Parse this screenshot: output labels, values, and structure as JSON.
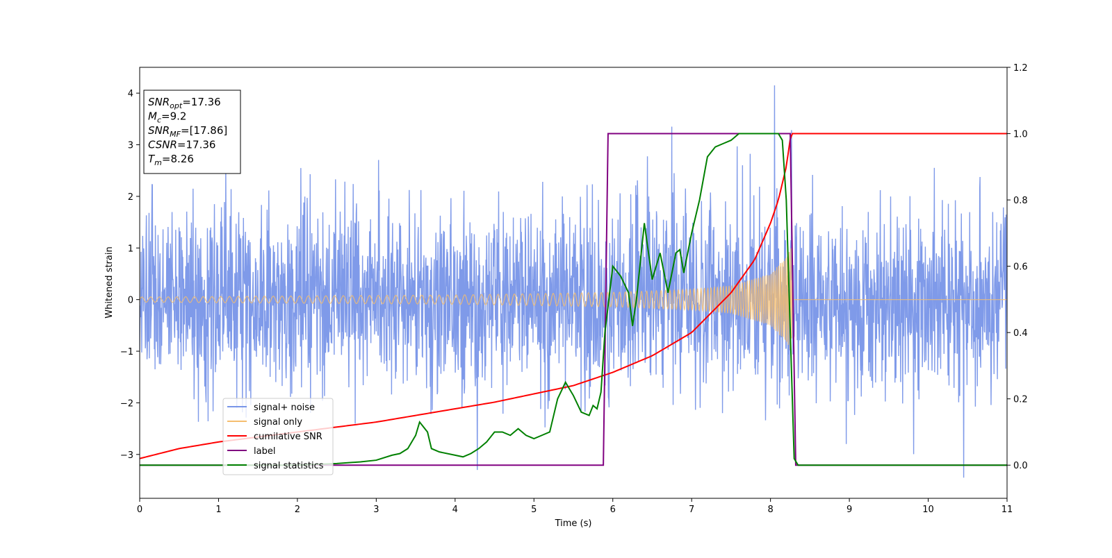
{
  "chart_data": {
    "type": "line",
    "title": "",
    "xlabel": "Time (s)",
    "ylabel": "Whitened strain",
    "y2label": "",
    "xlim": [
      0,
      11
    ],
    "ylim": [
      -3.85,
      4.5
    ],
    "y2lim": [
      -0.1,
      1.2
    ],
    "x_ticks": [
      "0",
      "1",
      "2",
      "3",
      "4",
      "5",
      "6",
      "7",
      "8",
      "9",
      "10",
      "11"
    ],
    "y_ticks": [
      {
        "v": 4,
        "label": "4"
      },
      {
        "v": 3,
        "label": "3"
      },
      {
        "v": 2,
        "label": "2"
      },
      {
        "v": 1,
        "label": "1"
      },
      {
        "v": 0,
        "label": "0"
      },
      {
        "v": -1,
        "label": "−1"
      },
      {
        "v": -2,
        "label": "−2"
      },
      {
        "v": -3,
        "label": "−3"
      }
    ],
    "y2_ticks": [
      "1.2",
      "1.0",
      "0.8",
      "0.6",
      "0.4",
      "0.2",
      "0.0"
    ],
    "annotations": [
      {
        "main": "SNR",
        "sub": "opt",
        "rest": "=17.36"
      },
      {
        "main": "M",
        "sub": "c",
        "rest": "=9.2"
      },
      {
        "main": "SNR",
        "sub": "MF",
        "rest": "=[17.86]"
      },
      {
        "main": "CSNR",
        "sub": "",
        "rest": "=17.36"
      },
      {
        "main": "T",
        "sub": "m",
        "rest": "=8.26"
      }
    ],
    "legend": {
      "placement": "lower-left",
      "entries": [
        {
          "name": "signal+ noise",
          "color": "#7895e8"
        },
        {
          "name": "signal only",
          "color": "#f5bd6e"
        },
        {
          "name": "cumilative SNR",
          "color": "#ff0000"
        },
        {
          "name": "label",
          "color": "#800080"
        },
        {
          "name": "signal statistics",
          "color": "#008000"
        }
      ]
    },
    "series": [
      {
        "name": "signal+ noise",
        "axis": "left",
        "color": "#7895e8",
        "description_values": {
          "noise_sigma": 0.9,
          "peak_outliers": [
            [
              8.05,
              4.15
            ],
            [
              6.75,
              3.35
            ],
            [
              10.45,
              -3.45
            ],
            [
              4.28,
              -3.3
            ]
          ]
        }
      },
      {
        "name": "signal only",
        "axis": "left",
        "color": "#f5bd6e",
        "envelope": {
          "x": [
            0,
            2,
            4,
            6,
            7,
            7.5,
            8,
            8.15,
            8.26,
            8.3,
            11
          ],
          "amp": [
            0.05,
            0.07,
            0.09,
            0.14,
            0.2,
            0.27,
            0.5,
            0.75,
            1.0,
            0.0,
            0.0
          ]
        }
      },
      {
        "name": "cumilative SNR",
        "axis": "right",
        "color": "#ff0000",
        "x": [
          0,
          0.5,
          1,
          1.5,
          2,
          2.5,
          3,
          3.5,
          4,
          4.5,
          5,
          5.5,
          6,
          6.5,
          7,
          7.5,
          7.8,
          8.0,
          8.1,
          8.2,
          8.26,
          8.3,
          11
        ],
        "values": [
          0.02,
          0.05,
          0.07,
          0.085,
          0.1,
          0.115,
          0.13,
          0.15,
          0.17,
          0.19,
          0.215,
          0.24,
          0.28,
          0.33,
          0.4,
          0.52,
          0.62,
          0.73,
          0.8,
          0.9,
          1.0,
          1.0,
          1.0
        ]
      },
      {
        "name": "label",
        "axis": "right",
        "color": "#800080",
        "x": [
          0,
          5.88,
          5.94,
          8.25,
          8.32,
          11
        ],
        "values": [
          0,
          0,
          1,
          1,
          0,
          0
        ]
      },
      {
        "name": "signal statistics",
        "axis": "right",
        "color": "#008000",
        "x": [
          0,
          1,
          2,
          2.5,
          2.8,
          3,
          3.2,
          3.3,
          3.4,
          3.5,
          3.55,
          3.65,
          3.7,
          3.8,
          4.0,
          4.1,
          4.2,
          4.3,
          4.4,
          4.5,
          4.6,
          4.7,
          4.8,
          4.9,
          5.0,
          5.1,
          5.2,
          5.3,
          5.4,
          5.5,
          5.6,
          5.7,
          5.75,
          5.8,
          5.85,
          5.9,
          6.0,
          6.1,
          6.2,
          6.25,
          6.3,
          6.4,
          6.5,
          6.6,
          6.7,
          6.8,
          6.85,
          6.9,
          7.0,
          7.1,
          7.2,
          7.3,
          7.4,
          7.5,
          7.6,
          8.0,
          8.1,
          8.15,
          8.2,
          8.3,
          8.35,
          9,
          10,
          11
        ],
        "values": [
          0,
          0,
          0,
          0.005,
          0.01,
          0.015,
          0.03,
          0.035,
          0.05,
          0.09,
          0.13,
          0.1,
          0.05,
          0.04,
          0.03,
          0.025,
          0.035,
          0.05,
          0.07,
          0.1,
          0.1,
          0.09,
          0.11,
          0.09,
          0.08,
          0.09,
          0.1,
          0.2,
          0.25,
          0.21,
          0.16,
          0.15,
          0.18,
          0.17,
          0.22,
          0.4,
          0.6,
          0.57,
          0.52,
          0.42,
          0.5,
          0.73,
          0.56,
          0.64,
          0.52,
          0.64,
          0.65,
          0.58,
          0.7,
          0.8,
          0.93,
          0.96,
          0.97,
          0.98,
          1.0,
          1.0,
          1.0,
          0.98,
          0.8,
          0.02,
          0.0,
          0.0,
          0.0,
          0.0
        ]
      }
    ]
  }
}
